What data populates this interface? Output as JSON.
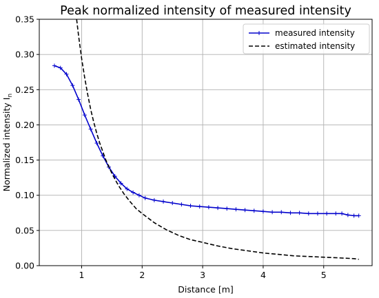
{
  "chart_data": {
    "type": "line",
    "title": "Peak normalized intensity of measured intensity",
    "xlabel": "Distance [m]",
    "ylabel": "Normalized intensity I",
    "ylabel_subscript": "n",
    "xlim": [
      0.3,
      5.8
    ],
    "ylim": [
      0.0,
      0.35
    ],
    "xticks": [
      1,
      2,
      3,
      4,
      5
    ],
    "yticks": [
      "0.00",
      "0.05",
      "0.10",
      "0.15",
      "0.20",
      "0.25",
      "0.30",
      "0.35"
    ],
    "grid": true,
    "legend_position": "top-right",
    "series": [
      {
        "name": "measured intensity",
        "color": "#0000cc",
        "style": "solid-with-plus-markers",
        "x": [
          0.55,
          0.65,
          0.75,
          0.85,
          0.95,
          1.05,
          1.15,
          1.25,
          1.35,
          1.45,
          1.55,
          1.65,
          1.75,
          1.85,
          1.95,
          2.05,
          2.2,
          2.35,
          2.5,
          2.65,
          2.8,
          2.95,
          3.1,
          3.25,
          3.4,
          3.55,
          3.7,
          3.85,
          4.0,
          4.15,
          4.3,
          4.45,
          4.6,
          4.75,
          4.9,
          5.05,
          5.2,
          5.3,
          5.4,
          5.5,
          5.58
        ],
        "y": [
          0.284,
          0.281,
          0.272,
          0.256,
          0.236,
          0.214,
          0.194,
          0.174,
          0.156,
          0.14,
          0.127,
          0.117,
          0.109,
          0.104,
          0.1,
          0.096,
          0.093,
          0.091,
          0.089,
          0.087,
          0.085,
          0.084,
          0.083,
          0.082,
          0.081,
          0.08,
          0.079,
          0.078,
          0.077,
          0.076,
          0.076,
          0.075,
          0.075,
          0.074,
          0.074,
          0.074,
          0.074,
          0.074,
          0.072,
          0.071,
          0.071
        ]
      },
      {
        "name": "estimated intensity",
        "color": "#000000",
        "style": "dashed",
        "x": [
          0.917,
          0.95,
          1.0,
          1.05,
          1.1,
          1.15,
          1.2,
          1.25,
          1.3,
          1.4,
          1.5,
          1.6,
          1.7,
          1.8,
          1.9,
          2.0,
          2.2,
          2.4,
          2.6,
          2.8,
          3.0,
          3.25,
          3.5,
          3.75,
          4.0,
          4.25,
          4.5,
          4.75,
          5.0,
          5.25,
          5.5,
          5.58
        ],
        "y": [
          0.35,
          0.326,
          0.294,
          0.267,
          0.243,
          0.222,
          0.204,
          0.188,
          0.174,
          0.15,
          0.131,
          0.115,
          0.102,
          0.091,
          0.081,
          0.074,
          0.061,
          0.051,
          0.043,
          0.037,
          0.033,
          0.028,
          0.024,
          0.021,
          0.018,
          0.016,
          0.014,
          0.013,
          0.012,
          0.011,
          0.01,
          0.009
        ]
      }
    ]
  }
}
